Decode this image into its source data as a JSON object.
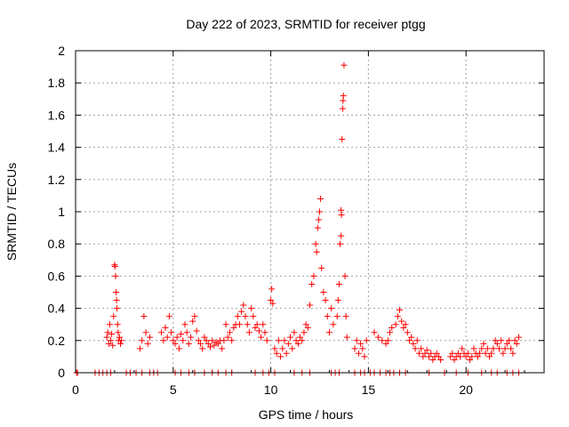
{
  "chart_data": {
    "type": "scatter",
    "title": "Day 222 of 2023, SRMTID for receiver ptgg",
    "xlabel": "GPS time / hours",
    "ylabel": "SRMTID / TECUs",
    "xlim": [
      0,
      24
    ],
    "ylim": [
      0,
      2
    ],
    "xticks": [
      0,
      5,
      10,
      15,
      20
    ],
    "yticks": [
      0,
      0.2,
      0.4,
      0.6,
      0.8,
      1,
      1.2,
      1.4,
      1.6,
      1.8,
      2
    ],
    "grid": true,
    "marker": "plus",
    "color": "#ff0000",
    "zeros_x": [
      0.05,
      0.1,
      1.0,
      1.2,
      1.4,
      1.6,
      1.8,
      2.6,
      2.8,
      3.1,
      3.4,
      3.8,
      4.0,
      4.2,
      5.1,
      5.4,
      5.8,
      6.1,
      6.6,
      7.0,
      7.3,
      7.7,
      8.0,
      9.2,
      9.6,
      9.9,
      10.2,
      11.2,
      11.6,
      12.0,
      13.1,
      13.3,
      13.5,
      14.3,
      14.6,
      14.8,
      15.1,
      15.3,
      15.6,
      15.9,
      16.1,
      16.3,
      16.6,
      16.9,
      18.1,
      18.9,
      19.5,
      20.1,
      20.8,
      21.3,
      21.6,
      22.1,
      22.4,
      22.7
    ],
    "series": [
      {
        "name": "SRMTID",
        "x": [
          1.6,
          1.65,
          1.7,
          1.75,
          1.8,
          1.85,
          1.9,
          1.95,
          2.0,
          2.02,
          2.05,
          2.08,
          2.1,
          2.12,
          2.15,
          2.18,
          2.2,
          2.25,
          2.3,
          2.35,
          3.3,
          3.4,
          3.5,
          3.6,
          3.7,
          3.8,
          4.4,
          4.5,
          4.6,
          4.7,
          4.8,
          4.9,
          5.0,
          5.1,
          5.2,
          5.3,
          5.4,
          5.5,
          5.6,
          5.7,
          5.8,
          5.9,
          6.0,
          6.1,
          6.2,
          6.3,
          6.4,
          6.5,
          6.6,
          6.7,
          6.8,
          6.9,
          7.0,
          7.1,
          7.2,
          7.3,
          7.4,
          7.5,
          7.6,
          7.7,
          7.8,
          7.9,
          8.0,
          8.1,
          8.2,
          8.3,
          8.4,
          8.5,
          8.6,
          8.7,
          8.8,
          8.9,
          9.0,
          9.1,
          9.2,
          9.3,
          9.4,
          9.5,
          9.6,
          9.7,
          9.8,
          10.0,
          10.05,
          10.1,
          10.2,
          10.3,
          10.4,
          10.5,
          10.6,
          10.7,
          10.8,
          10.9,
          11.0,
          11.1,
          11.2,
          11.3,
          11.4,
          11.5,
          11.6,
          11.7,
          11.8,
          11.9,
          12.0,
          12.1,
          12.2,
          12.3,
          12.35,
          12.4,
          12.45,
          12.5,
          12.55,
          12.6,
          12.7,
          12.8,
          12.9,
          13.0,
          13.1,
          13.2,
          13.4,
          13.45,
          13.5,
          13.55,
          13.6,
          13.6,
          13.62,
          13.65,
          13.68,
          13.7,
          13.72,
          13.75,
          13.8,
          13.85,
          13.9,
          14.3,
          14.4,
          14.5,
          14.6,
          14.7,
          14.8,
          14.9,
          15.3,
          15.5,
          15.7,
          15.9,
          16.0,
          16.1,
          16.2,
          16.4,
          16.5,
          16.6,
          16.7,
          16.8,
          16.9,
          17.0,
          17.1,
          17.2,
          17.3,
          17.4,
          17.5,
          17.6,
          17.7,
          17.8,
          17.9,
          18.0,
          18.1,
          18.2,
          18.3,
          18.4,
          18.5,
          18.6,
          18.7,
          19.2,
          19.3,
          19.4,
          19.5,
          19.6,
          19.7,
          19.8,
          19.9,
          20.0,
          20.1,
          20.2,
          20.3,
          20.4,
          20.5,
          20.6,
          20.7,
          20.8,
          20.9,
          21.0,
          21.1,
          21.2,
          21.3,
          21.4,
          21.5,
          21.6,
          21.7,
          21.8,
          21.9,
          22.0,
          22.1,
          22.2,
          22.3,
          22.4,
          22.5,
          22.6,
          22.7
        ],
        "y": [
          0.22,
          0.25,
          0.18,
          0.3,
          0.2,
          0.24,
          0.17,
          0.35,
          0.67,
          0.66,
          0.6,
          0.5,
          0.45,
          0.4,
          0.3,
          0.25,
          0.2,
          0.22,
          0.18,
          0.2,
          0.15,
          0.2,
          0.35,
          0.25,
          0.18,
          0.22,
          0.25,
          0.2,
          0.28,
          0.22,
          0.35,
          0.25,
          0.2,
          0.18,
          0.22,
          0.15,
          0.24,
          0.2,
          0.3,
          0.25,
          0.18,
          0.22,
          0.32,
          0.35,
          0.26,
          0.2,
          0.18,
          0.15,
          0.22,
          0.2,
          0.18,
          0.16,
          0.2,
          0.17,
          0.19,
          0.18,
          0.2,
          0.15,
          0.2,
          0.3,
          0.22,
          0.25,
          0.2,
          0.28,
          0.3,
          0.35,
          0.3,
          0.38,
          0.42,
          0.35,
          0.3,
          0.25,
          0.4,
          0.35,
          0.28,
          0.3,
          0.26,
          0.22,
          0.3,
          0.25,
          0.2,
          0.45,
          0.52,
          0.43,
          0.15,
          0.12,
          0.2,
          0.1,
          0.15,
          0.2,
          0.12,
          0.18,
          0.22,
          0.15,
          0.25,
          0.2,
          0.18,
          0.22,
          0.2,
          0.25,
          0.3,
          0.28,
          0.42,
          0.55,
          0.6,
          0.8,
          0.75,
          0.9,
          0.95,
          1.0,
          1.08,
          0.65,
          0.5,
          0.45,
          0.35,
          0.25,
          0.4,
          0.3,
          0.35,
          0.45,
          0.55,
          0.8,
          0.85,
          1.01,
          0.98,
          1.45,
          1.64,
          1.69,
          1.72,
          1.91,
          0.6,
          0.35,
          0.22,
          0.15,
          0.2,
          0.12,
          0.18,
          0.15,
          0.1,
          0.2,
          0.25,
          0.22,
          0.2,
          0.18,
          0.2,
          0.25,
          0.28,
          0.3,
          0.35,
          0.39,
          0.32,
          0.28,
          0.3,
          0.25,
          0.2,
          0.22,
          0.18,
          0.15,
          0.2,
          0.12,
          0.15,
          0.1,
          0.12,
          0.14,
          0.1,
          0.12,
          0.08,
          0.1,
          0.12,
          0.1,
          0.08,
          0.1,
          0.12,
          0.08,
          0.1,
          0.12,
          0.1,
          0.15,
          0.12,
          0.1,
          0.12,
          0.08,
          0.1,
          0.15,
          0.12,
          0.1,
          0.12,
          0.15,
          0.18,
          0.12,
          0.15,
          0.1,
          0.12,
          0.15,
          0.2,
          0.18,
          0.15,
          0.2,
          0.12,
          0.15,
          0.18,
          0.2,
          0.15,
          0.12,
          0.2,
          0.18,
          0.22
        ]
      }
    ]
  }
}
